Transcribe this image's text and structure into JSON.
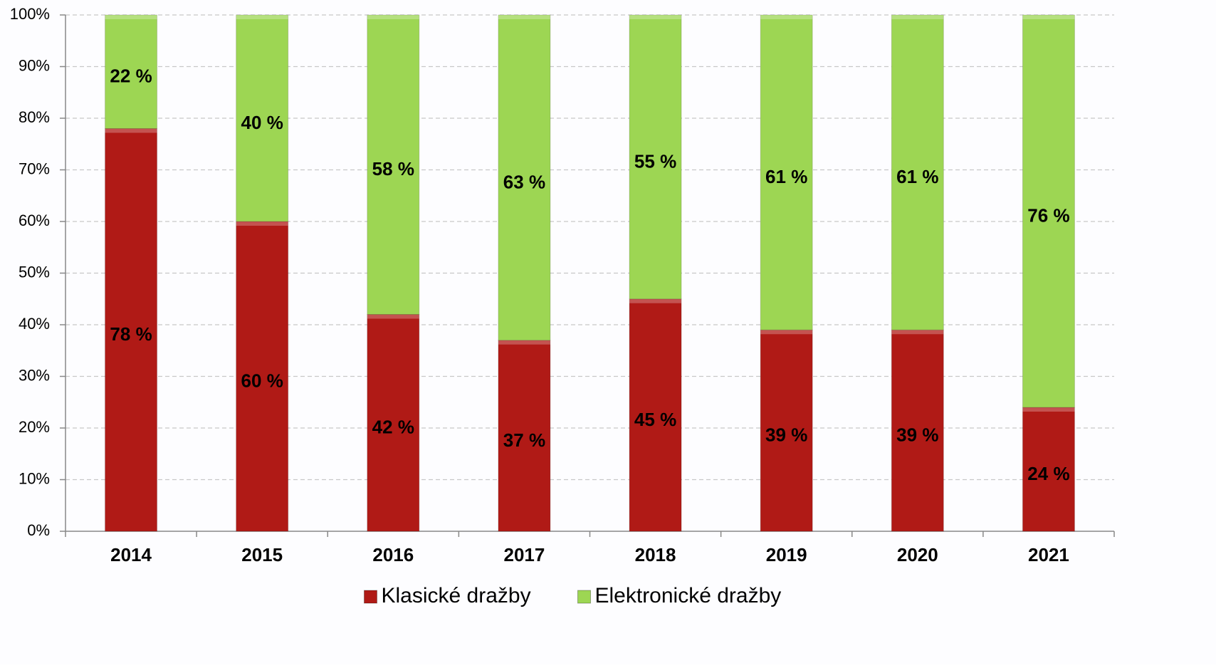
{
  "chart_data": {
    "type": "stacked_bar",
    "categories": [
      "2014",
      "2015",
      "2016",
      "2017",
      "2018",
      "2019",
      "2020",
      "2021"
    ],
    "series": [
      {
        "name": "Klasické dražby",
        "color": "#b01a16",
        "values": [
          78,
          60,
          42,
          37,
          45,
          39,
          39,
          24
        ],
        "value_labels": [
          "78 %",
          "60 %",
          "42 %",
          "37 %",
          "45 %",
          "39 %",
          "39 %",
          "24 %"
        ]
      },
      {
        "name": "Elektronické dražby",
        "color": "#9dd653",
        "values": [
          22,
          40,
          58,
          63,
          55,
          61,
          61,
          76
        ],
        "value_labels": [
          "22 %",
          "40 %",
          "58 %",
          "63 %",
          "55 %",
          "61 %",
          "61 %",
          "76 %"
        ]
      }
    ],
    "ylim": [
      0,
      100
    ],
    "yticks": [
      {
        "value": 0,
        "label": "0%"
      },
      {
        "value": 10,
        "label": "10%"
      },
      {
        "value": 20,
        "label": "20%"
      },
      {
        "value": 30,
        "label": "30%"
      },
      {
        "value": 40,
        "label": "40%"
      },
      {
        "value": 50,
        "label": "50%"
      },
      {
        "value": 60,
        "label": "60%"
      },
      {
        "value": 70,
        "label": "70%"
      },
      {
        "value": 80,
        "label": "80%"
      },
      {
        "value": 90,
        "label": "90%"
      },
      {
        "value": 100,
        "label": "100%"
      }
    ],
    "grid": true,
    "legend": "bottom"
  }
}
